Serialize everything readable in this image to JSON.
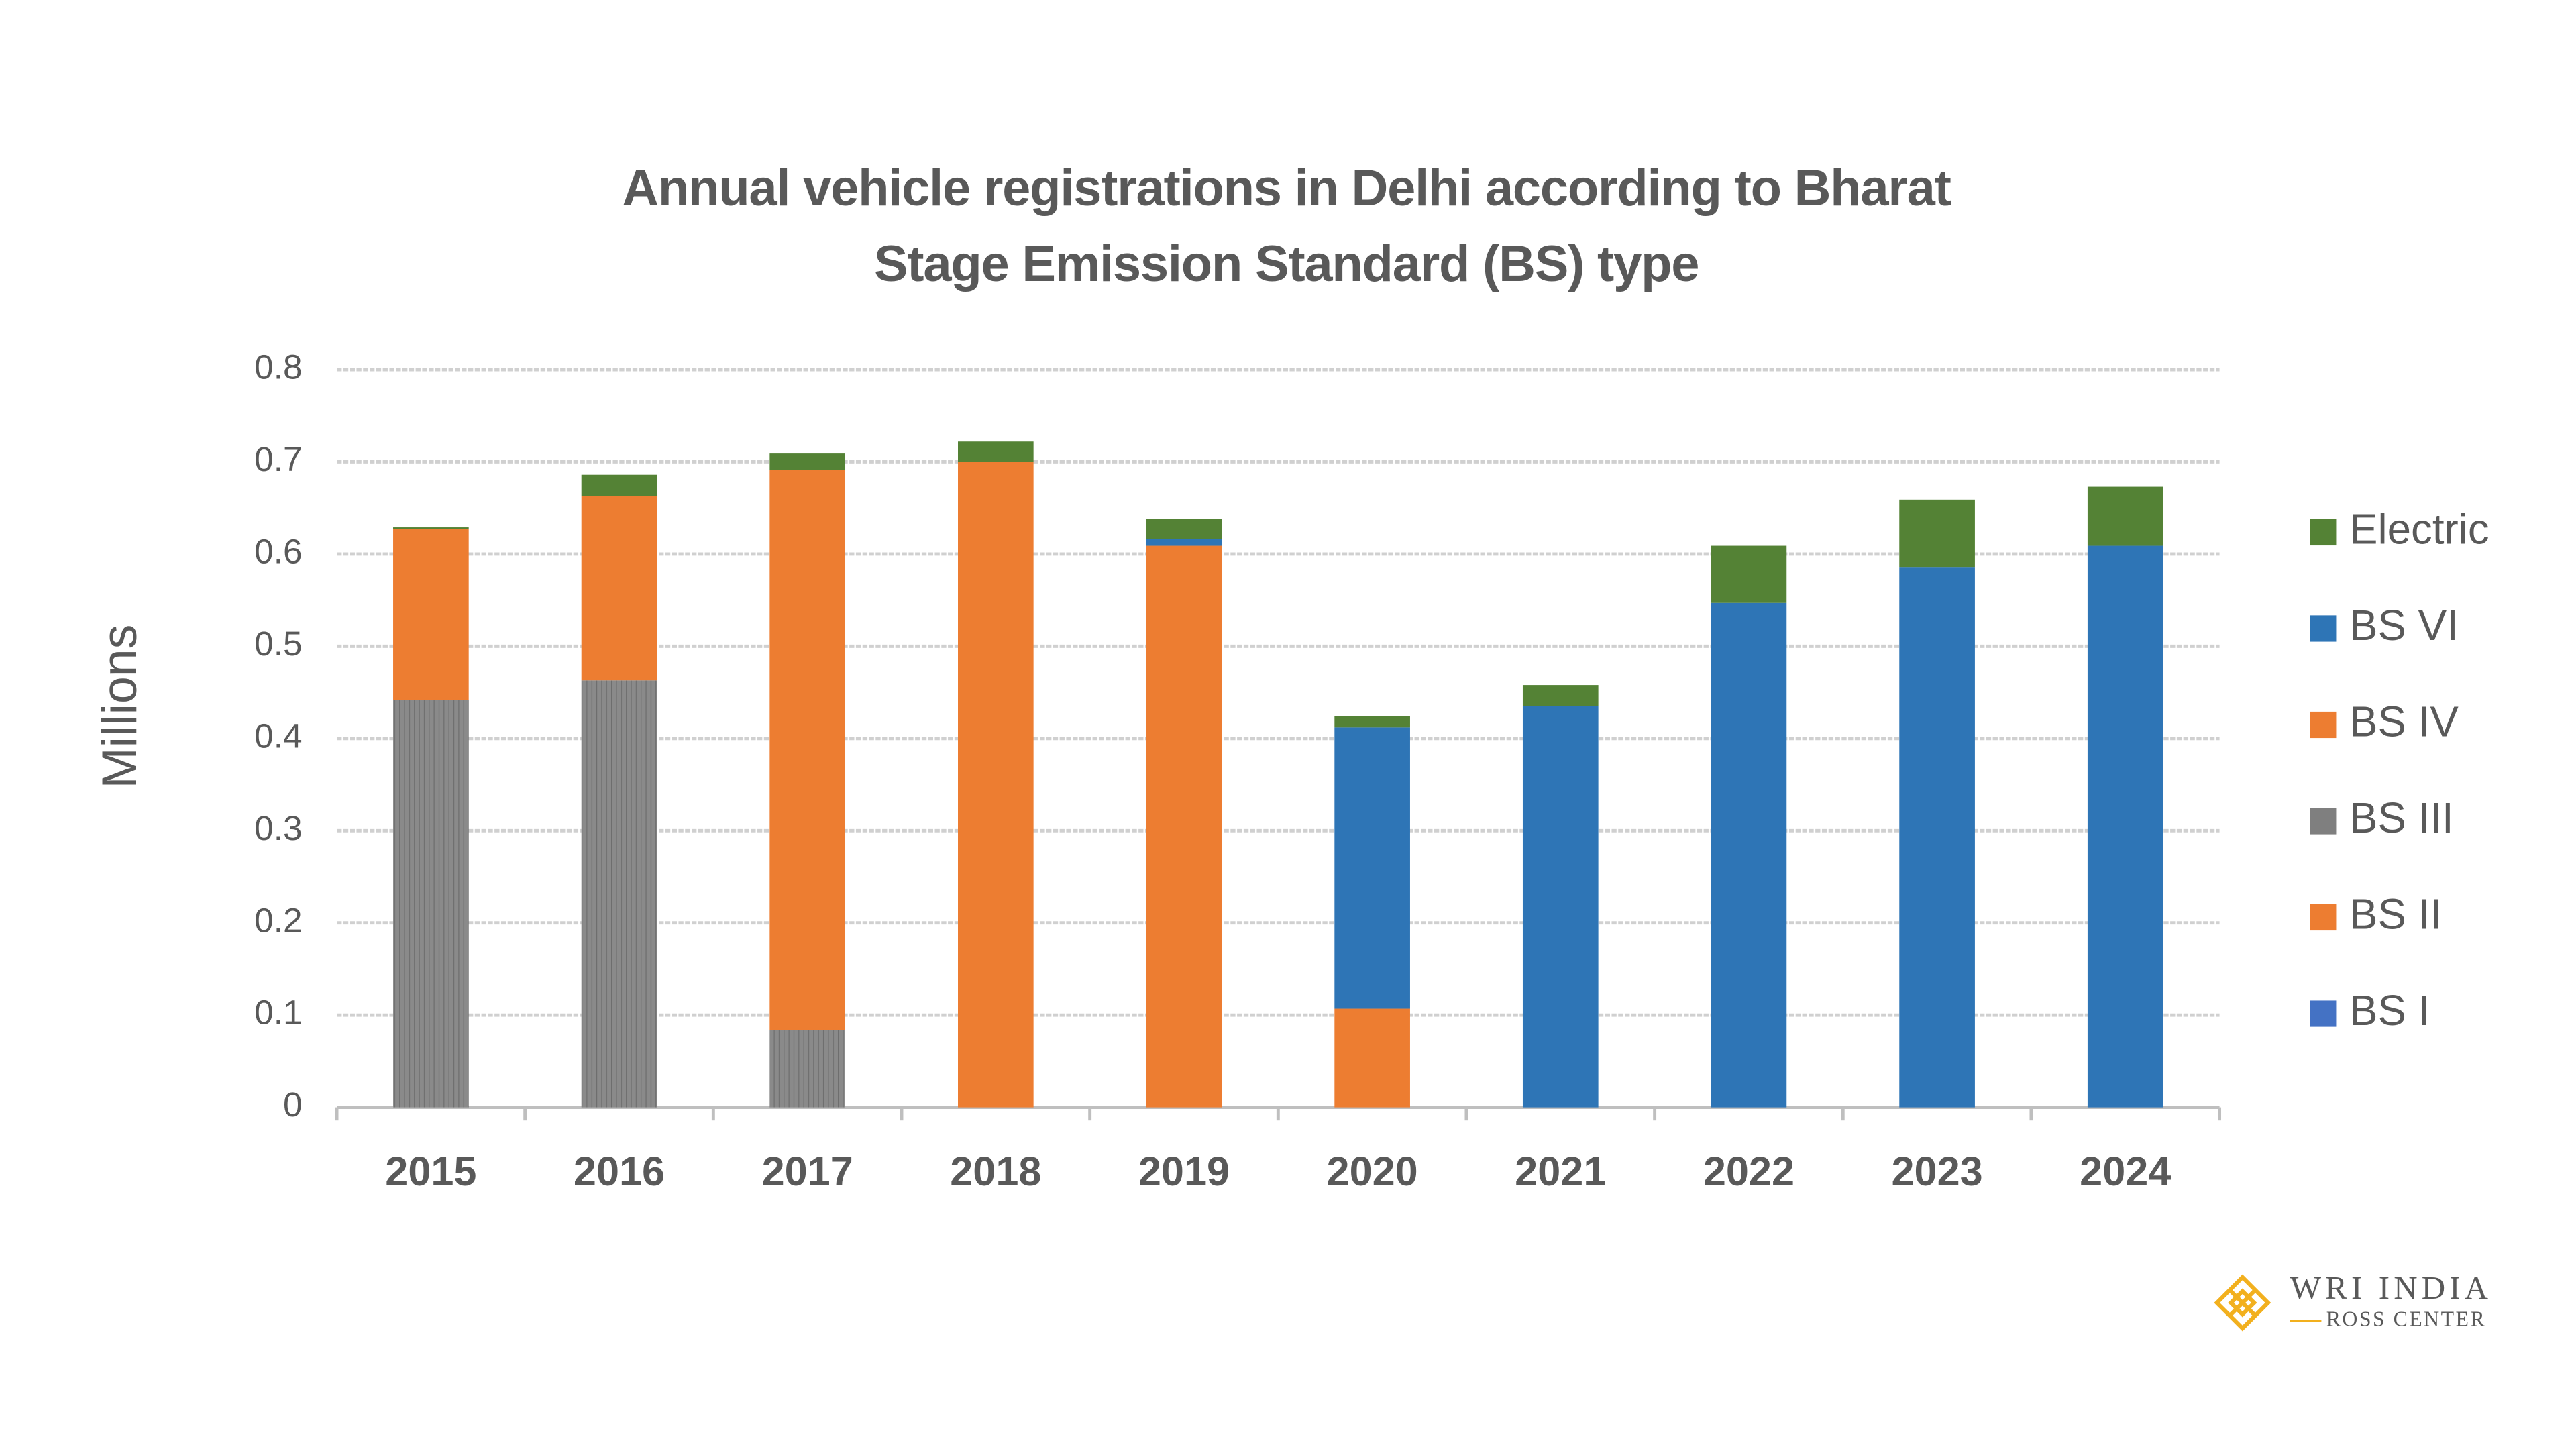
{
  "chart_data": {
    "type": "stacked-bar",
    "title": "Annual vehicle registrations in Delhi according to Bharat Stage Emission Standard (BS) type",
    "y_label": "Millions",
    "categories": [
      "2015",
      "2016",
      "2017",
      "2018",
      "2019",
      "2020",
      "2021",
      "2022",
      "2023",
      "2024"
    ],
    "series": [
      {
        "name": "BS I",
        "color": "#4472c4",
        "values": [
          0,
          0,
          0,
          0,
          0,
          0,
          0,
          0,
          0,
          0
        ]
      },
      {
        "name": "BS II",
        "color": "#ed7d31",
        "values": [
          0,
          0,
          0,
          0,
          0,
          0,
          0,
          0,
          0,
          0
        ]
      },
      {
        "name": "BS III",
        "color": "#7f7f7f",
        "values": [
          0.442,
          0.463,
          0.084,
          0,
          0,
          0,
          0,
          0,
          0,
          0
        ]
      },
      {
        "name": "BS IV",
        "color": "#ed7d31",
        "values": [
          0.185,
          0.2,
          0.607,
          0.7,
          0.609,
          0.107,
          0,
          0,
          0,
          0
        ]
      },
      {
        "name": "BS VI",
        "color": "#2e75b6",
        "values": [
          0,
          0,
          0,
          0,
          0.007,
          0.305,
          0.435,
          0.547,
          0.586,
          0.609
        ]
      },
      {
        "name": "Electric",
        "color": "#548235",
        "values": [
          0.002,
          0.023,
          0.018,
          0.022,
          0.022,
          0.012,
          0.023,
          0.062,
          0.073,
          0.064
        ]
      }
    ],
    "ylim": [
      0,
      0.8
    ],
    "yticks": [
      0,
      0.1,
      0.2,
      0.3,
      0.4,
      0.5,
      0.6,
      0.7,
      0.8
    ],
    "grid": true,
    "legend": "right"
  },
  "logo": {
    "name": "WRI INDIA",
    "subtitle": "ROSS CENTER"
  }
}
